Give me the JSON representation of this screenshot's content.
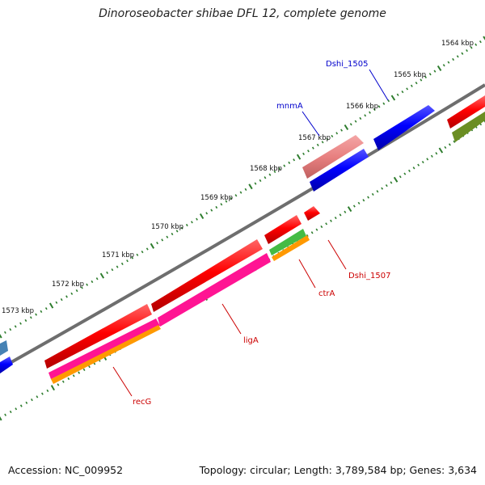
{
  "title": "Dinoroseobacter shibae DFL 12, complete genome",
  "footer": {
    "accession": "Accession: NC_009952",
    "stats": "Topology: circular; Length: 3,789,584 bp; Genes: 3,634"
  },
  "scale_labels": [
    "1564 kbp",
    "1565 kbp",
    "1566 kbp",
    "1567 kbp",
    "1568 kbp",
    "1569 kbp",
    "1570 kbp",
    "1571 kbp",
    "1572 kbp",
    "1573 kbp"
  ],
  "gene_labels": [
    {
      "text": "Dshi_1505",
      "color": "#0000cc"
    },
    {
      "text": "mnmA",
      "color": "#0000cc"
    },
    {
      "text": "Dshi_1507",
      "color": "#cc0000"
    },
    {
      "text": "ctrA",
      "color": "#cc0000"
    },
    {
      "text": "ligA",
      "color": "#cc0000"
    },
    {
      "text": "recG",
      "color": "#cc0000"
    }
  ],
  "colors": {
    "backbone": "#808080",
    "tick": "#2e7d2e",
    "red": "#ff0000",
    "blue": "#0000ff",
    "pink": "#f08080",
    "magenta": "#ff1493",
    "orange": "#ff9900",
    "green": "#44bb44",
    "olive": "#6b8e23",
    "steelblue": "#4682b4"
  }
}
